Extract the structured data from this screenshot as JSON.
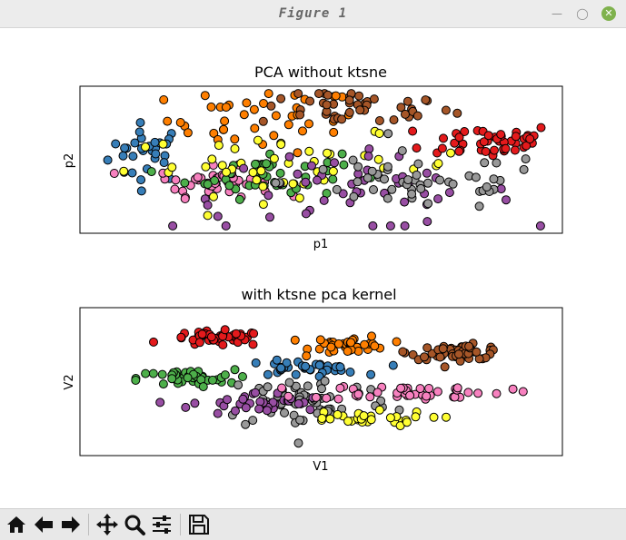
{
  "window": {
    "title": "Figure 1"
  },
  "toolbar": {
    "buttons": [
      "home-icon",
      "back-icon",
      "forward-icon",
      "pan-icon",
      "zoom-icon",
      "configure-icon",
      "save-icon"
    ]
  },
  "colors": {
    "red": "#e41a1c",
    "blue": "#377eb8",
    "green": "#4daf4a",
    "purple": "#984ea3",
    "orange": "#ff7f00",
    "yellow": "#ffff33",
    "brown": "#a65628",
    "pink": "#f781bf",
    "gray": "#999999"
  },
  "chart_data": [
    {
      "type": "scatter",
      "title": "PCA without ktsne",
      "xlabel": "p1",
      "ylabel": "p2",
      "grid": false,
      "ticks": false,
      "xlim": [
        0,
        100
      ],
      "ylim": [
        0,
        100
      ],
      "clusters": [
        {
          "color": "blue",
          "cx": 14,
          "cy": 55,
          "sx": 4,
          "sy": 10,
          "n": 30
        },
        {
          "color": "orange",
          "cx": 38,
          "cy": 77,
          "sx": 10,
          "sy": 11,
          "n": 40
        },
        {
          "color": "brown",
          "cx": 57,
          "cy": 85,
          "sx": 10,
          "sy": 6,
          "n": 45
        },
        {
          "color": "red",
          "cx": 85,
          "cy": 63,
          "sx": 7,
          "sy": 6,
          "n": 45
        },
        {
          "color": "pink",
          "cx": 28,
          "cy": 35,
          "sx": 6,
          "sy": 5,
          "n": 45
        },
        {
          "color": "green",
          "cx": 38,
          "cy": 40,
          "sx": 8,
          "sy": 8,
          "n": 45
        },
        {
          "color": "yellow",
          "cx": 45,
          "cy": 46,
          "sx": 18,
          "sy": 10,
          "n": 45
        },
        {
          "color": "purple",
          "cx": 55,
          "cy": 27,
          "sx": 18,
          "sy": 13,
          "n": 50
        },
        {
          "color": "gray",
          "cx": 70,
          "cy": 35,
          "sx": 14,
          "sy": 10,
          "n": 50
        }
      ]
    },
    {
      "type": "scatter",
      "title": "with ktsne pca kernel",
      "xlabel": "V1",
      "ylabel": "V2",
      "grid": false,
      "ticks": false,
      "xlim": [
        0,
        100
      ],
      "ylim": [
        0,
        100
      ],
      "clusters": [
        {
          "color": "red",
          "cx": 28.5,
          "cy": 79,
          "sx": 5,
          "sy": 2.5,
          "n": 45
        },
        {
          "color": "orange",
          "cx": 56,
          "cy": 75,
          "sx": 4,
          "sy": 3,
          "n": 40
        },
        {
          "color": "brown",
          "cx": 78.5,
          "cy": 70,
          "sx": 5,
          "sy": 2.5,
          "n": 50
        },
        {
          "color": "blue",
          "cx": 46,
          "cy": 59,
          "sx": 6,
          "sy": 2.5,
          "n": 35
        },
        {
          "color": "green",
          "cx": 22,
          "cy": 52,
          "sx": 5,
          "sy": 3,
          "n": 40
        },
        {
          "color": "gray",
          "cx": 47,
          "cy": 37,
          "sx": 9,
          "sy": 10,
          "n": 60
        },
        {
          "color": "purple",
          "cx": 37,
          "cy": 35,
          "sx": 7,
          "sy": 4,
          "n": 35
        },
        {
          "color": "pink",
          "cx": 68,
          "cy": 43,
          "sx": 10,
          "sy": 2.5,
          "n": 45
        },
        {
          "color": "yellow",
          "cx": 57,
          "cy": 25,
          "sx": 8,
          "sy": 2.5,
          "n": 30
        }
      ]
    }
  ]
}
